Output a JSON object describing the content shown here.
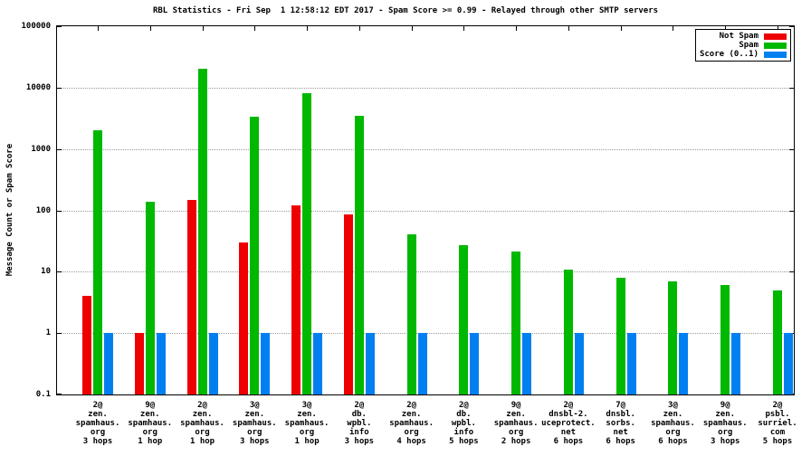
{
  "chart_data": {
    "type": "bar",
    "title": "RBL Statistics - Fri Sep  1 12:58:12 EDT 2017 - Spam Score >= 0.99 - Relayed through other SMTP servers",
    "ylabel": "Message Count or Spam Score",
    "xlabel": "",
    "yscale": "log",
    "ylim": [
      0.1,
      100000
    ],
    "grid": "dotted-horizontal",
    "legend_position": "top-right-inside",
    "yticks": [
      {
        "v": 0.1,
        "label": "0.1"
      },
      {
        "v": 1,
        "label": "1"
      },
      {
        "v": 10,
        "label": "10"
      },
      {
        "v": 100,
        "label": "100"
      },
      {
        "v": 1000,
        "label": "1000"
      },
      {
        "v": 10000,
        "label": "10000"
      },
      {
        "v": 100000,
        "label": "100000"
      }
    ],
    "categories": [
      [
        "2@",
        "zen.",
        "spamhaus.",
        "org",
        "3 hops"
      ],
      [
        "9@",
        "zen.",
        "spamhaus.",
        "org",
        "1 hop"
      ],
      [
        "2@",
        "zen.",
        "spamhaus.",
        "org",
        "1 hop"
      ],
      [
        "3@",
        "zen.",
        "spamhaus.",
        "org",
        "3 hops"
      ],
      [
        "3@",
        "zen.",
        "spamhaus.",
        "org",
        "1 hop"
      ],
      [
        "2@",
        "db.",
        "wpbl.",
        "info",
        "3 hops"
      ],
      [
        "2@",
        "zen.",
        "spamhaus.",
        "org",
        "4 hops"
      ],
      [
        "2@",
        "db.",
        "wpbl.",
        "info",
        "5 hops"
      ],
      [
        "9@",
        "zen.",
        "spamhaus.",
        "org",
        "2 hops"
      ],
      [
        "2@",
        "dnsbl-2.",
        "uceprotect.",
        "net",
        "6 hops"
      ],
      [
        "7@",
        "dnsbl.",
        "sorbs.",
        "net",
        "6 hops"
      ],
      [
        "3@",
        "zen.",
        "spamhaus.",
        "org",
        "6 hops"
      ],
      [
        "9@",
        "zen.",
        "spamhaus.",
        "org",
        "3 hops"
      ],
      [
        "2@",
        "psbl.",
        "surriel.",
        "com",
        "5 hops"
      ]
    ],
    "series": [
      {
        "name": "Not Spam",
        "color": "#ee0000",
        "values": [
          4,
          1,
          150,
          30,
          120,
          85,
          null,
          null,
          null,
          null,
          null,
          null,
          null,
          null
        ]
      },
      {
        "name": "Spam",
        "color": "#00b800",
        "values": [
          2000,
          140,
          20000,
          3300,
          8000,
          3500,
          40,
          27,
          21,
          11,
          8,
          7,
          6,
          5
        ]
      },
      {
        "name": "Score (0..1)",
        "color": "#0080f0",
        "values": [
          1,
          1,
          1,
          1,
          1,
          1,
          1,
          1,
          1,
          1,
          1,
          1,
          1,
          1
        ]
      }
    ]
  }
}
